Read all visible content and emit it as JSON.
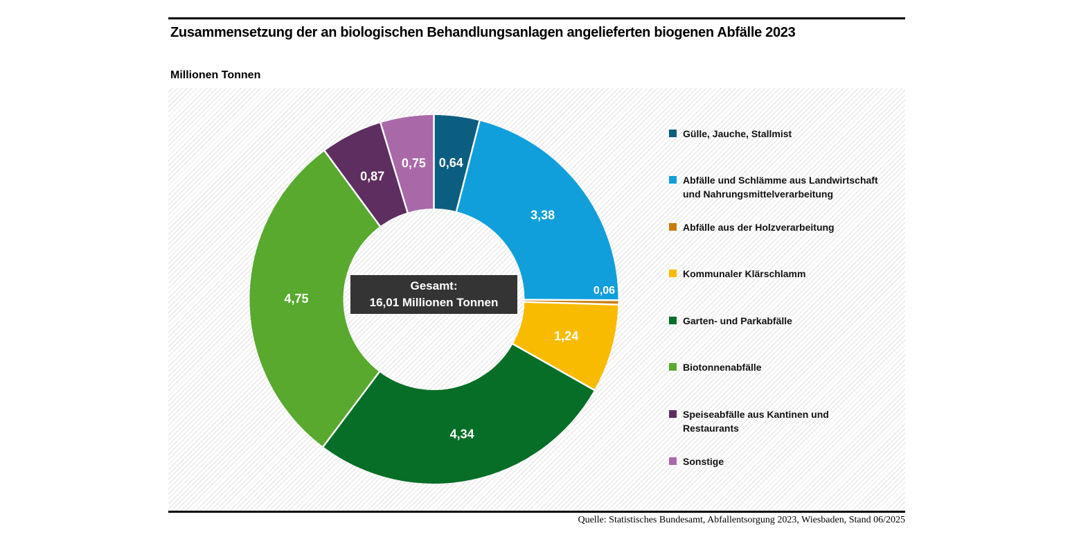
{
  "header": {
    "title": "Zusammensetzung der an biologischen Behandlungsanlagen angelieferten biogenen Abfälle 2023",
    "unit_label": "Millionen Tonnen"
  },
  "center_label": {
    "line1": "Gesamt:",
    "line2": "16,01 Millionen Tonnen"
  },
  "source": "Quelle: Statistisches Bundesamt, Abfallentsorgung 2023, Wiesbaden, Stand 06/2025",
  "colors": {
    "rule": "#000000",
    "center_box_bg": "#343434",
    "center_box_text": "#ffffff",
    "segment_label_text": "#ffffff",
    "hatch_line": "#e3e3e3"
  },
  "chart_data": {
    "type": "pie",
    "subtype": "donut",
    "title": "Zusammensetzung der an biologischen Behandlungsanlagen angelieferten biogenen Abfälle 2023",
    "unit": "Millionen Tonnen",
    "total": 16.01,
    "total_label": "Gesamt: 16,01 Millionen Tonnen",
    "start_angle_deg": 0,
    "direction": "clockwise",
    "legend_position": "right",
    "segments": [
      {
        "label": "Gülle, Jauche, Stallmist",
        "legend_lines": [
          "Gülle, Jauche, Stallmist"
        ],
        "value": 0.64,
        "display_value": "0,64",
        "color": "#0c5e80"
      },
      {
        "label": "Abfälle und Schlämme aus Landwirtschaft und Nahrungsmittelverarbeitung",
        "legend_lines": [
          "Abfälle und Schlämme aus Landwirtschaft",
          "und Nahrungsmittelverarbeitung"
        ],
        "value": 3.38,
        "display_value": "3,38",
        "color": "#109fda"
      },
      {
        "label": "Abfälle aus der Holzverarbeitung",
        "legend_lines": [
          "Abfälle aus der Holzverarbeitung"
        ],
        "value": 0.06,
        "display_value": "0,06",
        "color": "#c87d0a"
      },
      {
        "label": "Kommunaler Klärschlamm",
        "legend_lines": [
          "Kommunaler Klärschlamm"
        ],
        "value": 1.24,
        "display_value": "1,24",
        "color": "#f9bb00"
      },
      {
        "label": "Garten- und Parkabfälle",
        "legend_lines": [
          "Garten- und Parkabfälle"
        ],
        "value": 4.34,
        "display_value": "4,34",
        "color": "#066e26"
      },
      {
        "label": "Biotonnenabfälle",
        "legend_lines": [
          "Biotonnenabfälle"
        ],
        "value": 4.75,
        "display_value": "4,75",
        "color": "#58a92e"
      },
      {
        "label": "Speiseabfälle aus Kantinen und Restaurants",
        "legend_lines": [
          "Speiseabfälle aus Kantinen und",
          "Restaurants"
        ],
        "value": 0.87,
        "display_value": "0,87",
        "color": "#5d2e5f"
      },
      {
        "label": "Sonstige",
        "legend_lines": [
          "Sonstige"
        ],
        "value": 0.75,
        "display_value": "0,75",
        "color": "#a969a9"
      }
    ]
  }
}
